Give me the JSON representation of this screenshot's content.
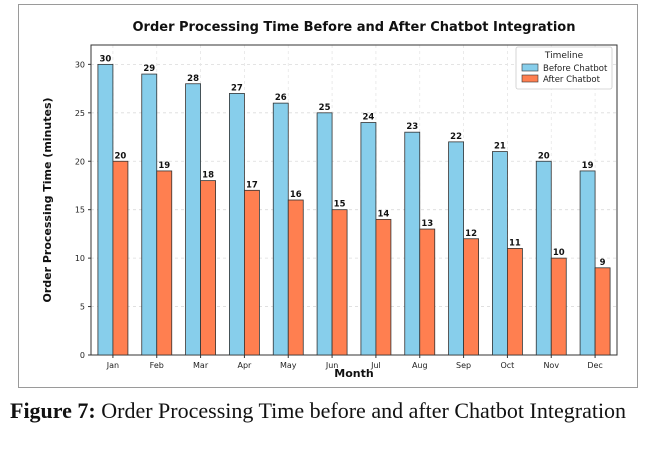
{
  "chart_data": {
    "type": "bar",
    "title": "Order Processing Time Before and After Chatbot Integration",
    "xlabel": "Month",
    "ylabel": "Order Processing Time (minutes)",
    "categories": [
      "Jan",
      "Feb",
      "Mar",
      "Apr",
      "May",
      "Jun",
      "Jul",
      "Aug",
      "Sep",
      "Oct",
      "Nov",
      "Dec"
    ],
    "series": [
      {
        "name": "Before Chatbot",
        "values": [
          30,
          29,
          28,
          27,
          26,
          25,
          24,
          23,
          22,
          21,
          20,
          19
        ],
        "color": "#87CEEB"
      },
      {
        "name": "After Chatbot",
        "values": [
          20,
          19,
          18,
          17,
          16,
          15,
          14,
          13,
          12,
          11,
          10,
          9
        ],
        "color": "#FF7F50"
      }
    ],
    "ylim": [
      0,
      32
    ],
    "yticks": [
      0,
      5,
      10,
      15,
      20,
      25,
      30
    ],
    "grid": true,
    "legend": {
      "title": "Timeline",
      "placement": "top-right"
    },
    "data_labels": true
  },
  "caption": {
    "label": "Figure 7:",
    "text": " Order Processing Time before and after Chatbot Integration"
  }
}
